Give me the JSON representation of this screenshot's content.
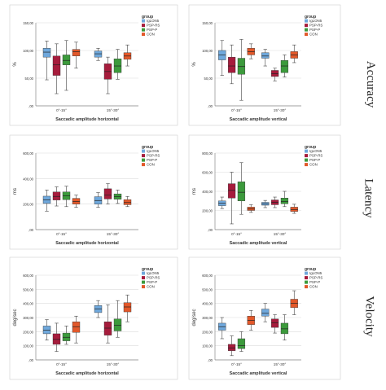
{
  "row_labels": [
    "Accuracy",
    "Latency",
    "Velocity"
  ],
  "legend_title": "group",
  "groups": [
    "IgLON5",
    "PSP-RS",
    "PSP-P",
    "CON"
  ],
  "group_keys": [
    "igl",
    "rs",
    "p",
    "con"
  ],
  "colors": {
    "igl": "#6fa8dc",
    "rs": "#a61c3c",
    "p": "#3c9a3c",
    "con": "#e2582a"
  },
  "chart_data": [
    {
      "type": "box",
      "title": "",
      "xlabel": "Saccadic amplitude horizontal",
      "ylabel": "%",
      "categories": [
        "0°-15°",
        "15°-30°"
      ],
      "ylim": [
        0,
        150
      ],
      "yticks": [
        0,
        50,
        100,
        150
      ],
      "ytick_labels": [
        ",00",
        "50,00",
        "100,00",
        "150,00"
      ],
      "series": [
        {
          "name": "IgLON5",
          "boxes": [
            {
              "min": 47,
              "q1": 88,
              "med": 97,
              "q3": 104,
              "max": 117
            },
            {
              "min": 82,
              "q1": 88,
              "med": 94,
              "q3": 99,
              "max": 104
            }
          ]
        },
        {
          "name": "PSP-RS",
          "boxes": [
            {
              "min": 22,
              "q1": 55,
              "med": 74,
              "q3": 90,
              "max": 112
            },
            {
              "min": 22,
              "q1": 48,
              "med": 62,
              "q3": 76,
              "max": 88
            }
          ]
        },
        {
          "name": "PSP-P",
          "boxes": [
            {
              "min": 28,
              "q1": 74,
              "med": 82,
              "q3": 92,
              "max": 118
            },
            {
              "min": 48,
              "q1": 60,
              "med": 72,
              "q3": 85,
              "max": 102
            }
          ]
        },
        {
          "name": "CON",
          "boxes": [
            {
              "min": 68,
              "q1": 90,
              "med": 98,
              "q3": 102,
              "max": 115
            },
            {
              "min": 72,
              "q1": 84,
              "med": 90,
              "q3": 96,
              "max": 110
            }
          ]
        }
      ]
    },
    {
      "type": "box",
      "title": "",
      "xlabel": "Saccadic amplitude vertical",
      "ylabel": "%",
      "categories": [
        "0°-15°",
        "15°-30°"
      ],
      "ylim": [
        0,
        150
      ],
      "yticks": [
        0,
        50,
        100,
        150
      ],
      "ytick_labels": [
        ",00",
        "50,00",
        "100,00",
        "150,00"
      ],
      "series": [
        {
          "name": "IgLON5",
          "boxes": [
            {
              "min": 55,
              "q1": 83,
              "med": 92,
              "q3": 100,
              "max": 118
            },
            {
              "min": 72,
              "q1": 86,
              "med": 90,
              "q3": 96,
              "max": 102
            }
          ]
        },
        {
          "name": "PSP-RS",
          "boxes": [
            {
              "min": 40,
              "q1": 60,
              "med": 72,
              "q3": 88,
              "max": 110
            },
            {
              "min": 45,
              "q1": 53,
              "med": 58,
              "q3": 64,
              "max": 68
            }
          ]
        },
        {
          "name": "PSP-P",
          "boxes": [
            {
              "min": 10,
              "q1": 57,
              "med": 71,
              "q3": 86,
              "max": 120
            },
            {
              "min": 52,
              "q1": 60,
              "med": 72,
              "q3": 82,
              "max": 92
            }
          ]
        },
        {
          "name": "CON",
          "boxes": [
            {
              "min": 85,
              "q1": 92,
              "med": 98,
              "q3": 104,
              "max": 112
            },
            {
              "min": 78,
              "q1": 86,
              "med": 92,
              "q3": 98,
              "max": 110
            }
          ]
        }
      ]
    },
    {
      "type": "box",
      "title": "",
      "xlabel": "Saccadic amplitude horizontal",
      "ylabel": "ms",
      "categories": [
        "0°-15°",
        "15°-30°"
      ],
      "ylim": [
        0,
        600
      ],
      "yticks": [
        0,
        200,
        400,
        600
      ],
      "ytick_labels": [
        ",00",
        "200,00",
        "400,00",
        "600,00"
      ],
      "series": [
        {
          "name": "IgLON5",
          "boxes": [
            {
              "min": 145,
              "q1": 205,
              "med": 232,
              "q3": 262,
              "max": 310
            },
            {
              "min": 175,
              "q1": 200,
              "med": 228,
              "q3": 258,
              "max": 290
            }
          ]
        },
        {
          "name": "PSP-RS",
          "boxes": [
            {
              "min": 185,
              "q1": 232,
              "med": 260,
              "q3": 295,
              "max": 335
            },
            {
              "min": 200,
              "q1": 240,
              "med": 270,
              "q3": 320,
              "max": 360
            }
          ]
        },
        {
          "name": "PSP-P",
          "boxes": [
            {
              "min": 180,
              "q1": 235,
              "med": 265,
              "q3": 295,
              "max": 340
            },
            {
              "min": 205,
              "q1": 238,
              "med": 258,
              "q3": 280,
              "max": 310
            }
          ]
        },
        {
          "name": "CON",
          "boxes": [
            {
              "min": 175,
              "q1": 200,
              "med": 220,
              "q3": 245,
              "max": 270
            },
            {
              "min": 180,
              "q1": 195,
              "med": 212,
              "q3": 235,
              "max": 260
            }
          ]
        }
      ]
    },
    {
      "type": "box",
      "title": "",
      "xlabel": "Saccadic amplitude vertical",
      "ylabel": "ms",
      "categories": [
        "0°-15°",
        "15°-30°"
      ],
      "ylim": [
        0,
        800
      ],
      "yticks": [
        0,
        200,
        400,
        600,
        800
      ],
      "ytick_labels": [
        ",00",
        "200,00",
        "400,00",
        "600,00",
        "800,00"
      ],
      "series": [
        {
          "name": "IgLON5",
          "boxes": [
            {
              "min": 220,
              "q1": 250,
              "med": 275,
              "q3": 300,
              "max": 340
            },
            {
              "min": 230,
              "q1": 255,
              "med": 270,
              "q3": 285,
              "max": 305
            }
          ]
        },
        {
          "name": "PSP-RS",
          "boxes": [
            {
              "min": 60,
              "q1": 330,
              "med": 410,
              "q3": 480,
              "max": 600
            },
            {
              "min": 230,
              "q1": 260,
              "med": 285,
              "q3": 310,
              "max": 340
            }
          ]
        },
        {
          "name": "PSP-P",
          "boxes": [
            {
              "min": 160,
              "q1": 300,
              "med": 390,
              "q3": 500,
              "max": 700
            },
            {
              "min": 240,
              "q1": 270,
              "med": 295,
              "q3": 330,
              "max": 400
            }
          ]
        },
        {
          "name": "CON",
          "boxes": [
            {
              "min": 180,
              "q1": 200,
              "med": 215,
              "q3": 235,
              "max": 260
            },
            {
              "min": 170,
              "q1": 190,
              "med": 210,
              "q3": 235,
              "max": 265
            }
          ]
        }
      ]
    },
    {
      "type": "box",
      "title": "",
      "xlabel": "Saccadic amplitude horizontal",
      "ylabel": "deg/sec",
      "categories": [
        "0°-15°",
        "15°-30°"
      ],
      "ylim": [
        0,
        600
      ],
      "yticks": [
        0,
        100,
        200,
        300,
        400,
        500,
        600
      ],
      "ytick_labels": [
        ",00",
        "100,00",
        "200,00",
        "300,00",
        "400,00",
        "500,00",
        "600,00"
      ],
      "series": [
        {
          "name": "IgLON5",
          "boxes": [
            {
              "min": 140,
              "q1": 185,
              "med": 210,
              "q3": 240,
              "max": 285
            },
            {
              "min": 300,
              "q1": 335,
              "med": 360,
              "q3": 385,
              "max": 420
            }
          ]
        },
        {
          "name": "PSP-RS",
          "boxes": [
            {
              "min": 60,
              "q1": 110,
              "med": 145,
              "q3": 185,
              "max": 260
            },
            {
              "min": 120,
              "q1": 175,
              "med": 225,
              "q3": 270,
              "max": 390
            }
          ]
        },
        {
          "name": "PSP-P",
          "boxes": [
            {
              "min": 110,
              "q1": 135,
              "med": 160,
              "q3": 190,
              "max": 240
            },
            {
              "min": 160,
              "q1": 205,
              "med": 245,
              "q3": 290,
              "max": 420
            }
          ]
        },
        {
          "name": "CON",
          "boxes": [
            {
              "min": 120,
              "q1": 195,
              "med": 235,
              "q3": 270,
              "max": 310
            },
            {
              "min": 270,
              "q1": 340,
              "med": 375,
              "q3": 405,
              "max": 460
            }
          ]
        }
      ]
    },
    {
      "type": "box",
      "title": "",
      "xlabel": "Saccadic amplitude vertical",
      "ylabel": "deg/sec",
      "categories": [
        "0°-15°",
        "15°-30°"
      ],
      "ylim": [
        0,
        600
      ],
      "yticks": [
        0,
        100,
        200,
        300,
        400,
        500,
        600
      ],
      "ytick_labels": [
        ",00",
        "100,00",
        "200,00",
        "300,00",
        "400,00",
        "500,00",
        "600,00"
      ],
      "series": [
        {
          "name": "IgLON5",
          "boxes": [
            {
              "min": 150,
              "q1": 210,
              "med": 235,
              "q3": 260,
              "max": 300
            },
            {
              "min": 270,
              "q1": 310,
              "med": 330,
              "q3": 360,
              "max": 400
            }
          ]
        },
        {
          "name": "PSP-RS",
          "boxes": [
            {
              "min": 30,
              "q1": 65,
              "med": 85,
              "q3": 110,
              "max": 170
            },
            {
              "min": 190,
              "q1": 230,
              "med": 262,
              "q3": 290,
              "max": 320
            }
          ]
        },
        {
          "name": "PSP-P",
          "boxes": [
            {
              "min": 60,
              "q1": 80,
              "med": 100,
              "q3": 150,
              "max": 200
            },
            {
              "min": 140,
              "q1": 185,
              "med": 220,
              "q3": 260,
              "max": 320
            }
          ]
        },
        {
          "name": "CON",
          "boxes": [
            {
              "min": 210,
              "q1": 250,
              "med": 280,
              "q3": 310,
              "max": 350
            },
            {
              "min": 320,
              "q1": 370,
              "med": 400,
              "q3": 430,
              "max": 490
            }
          ]
        }
      ]
    }
  ]
}
